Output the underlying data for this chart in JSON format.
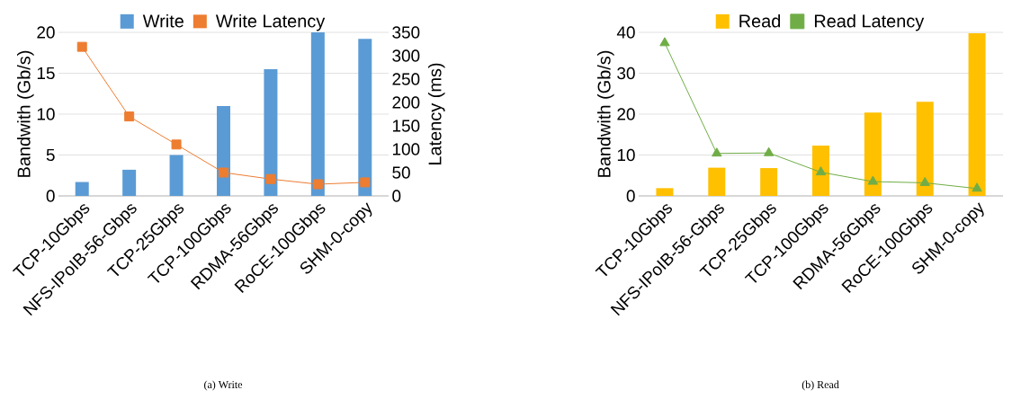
{
  "chart_data": [
    {
      "type": "bar",
      "title": "(a) Write",
      "ylabel": "Bandwith (Gb/s)",
      "y2label": "Latency (ms)",
      "categories": [
        "TCP-10Gbps",
        "NFS-IPoIB-56-Gbps",
        "TCP-25Gbps",
        "TCP-100Gbps",
        "RDMA-56Gbps",
        "RoCE-100Gbps",
        "SHM-0-copy"
      ],
      "series": [
        {
          "name": "Write",
          "color": "#5b9bd5",
          "values": [
            1.7,
            3.2,
            5.0,
            11.0,
            15.5,
            20.0,
            19.2
          ]
        },
        {
          "name": "Write Latency",
          "type": "line",
          "axis": "y2",
          "marker": "square",
          "color": "#ed7d31",
          "values": [
            319,
            170,
            110,
            50,
            36,
            25,
            29
          ]
        }
      ],
      "ylim": [
        0,
        20
      ],
      "yticks": [
        0,
        5,
        10,
        15,
        20
      ],
      "y2lim": [
        0,
        350
      ],
      "y2ticks": [
        0,
        50,
        100,
        150,
        200,
        250,
        300,
        350
      ],
      "grid": "y",
      "legend": "top"
    },
    {
      "type": "bar",
      "title": "(b) Read",
      "ylabel": "Bandwith (Gb/s)",
      "categories": [
        "TCP-10Gbps",
        "NFS-IPoIB-56-Gbps",
        "TCP-25Gbps",
        "TCP-100Gbps",
        "RDMA-56Gbps",
        "RoCE-100Gbps",
        "SHM-0-copy"
      ],
      "series": [
        {
          "name": "Read",
          "color": "#ffc000",
          "values": [
            1.9,
            6.9,
            6.8,
            12.3,
            20.4,
            23.0,
            39.8
          ]
        },
        {
          "name": "Read Latency",
          "type": "line",
          "marker": "triangle",
          "color": "#70ad47",
          "values": [
            37.4,
            10.4,
            10.5,
            5.8,
            3.5,
            3.2,
            1.8
          ]
        }
      ],
      "ylim": [
        0,
        40
      ],
      "yticks": [
        0,
        10,
        20,
        30,
        40
      ],
      "grid": "y",
      "legend": "top"
    }
  ]
}
